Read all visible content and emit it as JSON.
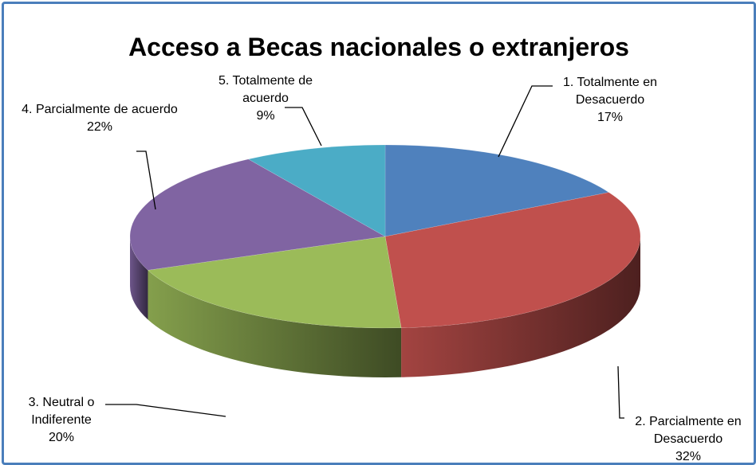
{
  "chart_data": {
    "type": "pie",
    "title": "Acceso a Becas nacionales o extranjeros",
    "categories": [
      "1. Totalmente en Desacuerdo",
      "2. Parcialmente en Desacuerdo",
      "3. Neutral o Indiferente",
      "4. Parcialmente de acuerdo",
      "5. Totalmente de acuerdo"
    ],
    "values": [
      17,
      32,
      20,
      22,
      9
    ],
    "value_labels": [
      "17%",
      "32%",
      "20%",
      "22%",
      "9%"
    ],
    "colors": [
      "#4f81bd",
      "#c0504d",
      "#9bbb59",
      "#8064a2",
      "#4bacc6"
    ]
  }
}
